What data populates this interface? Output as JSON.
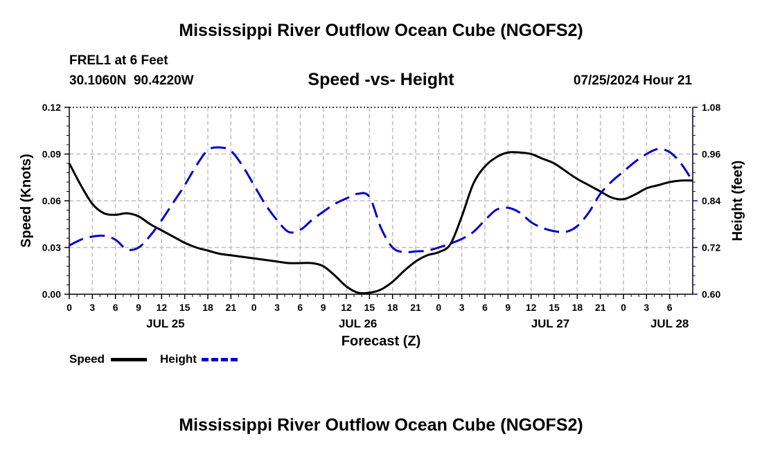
{
  "page": {
    "title_top": "Mississippi River Outflow Ocean Cube (NGOFS2)",
    "title_bottom": "Mississippi River Outflow Ocean Cube (NGOFS2)",
    "station_line": "FREL1 at 6 Feet",
    "coords_line": "30.1060N  90.4220W",
    "datetime_line": "07/25/2024 Hour 21"
  },
  "chart_data": {
    "type": "line",
    "title": "Speed -vs- Height",
    "xlabel": "Forecast (Z)",
    "ylabel": "Speed (Knots)",
    "y2label": "Height (feet)",
    "xlim": [
      0,
      81
    ],
    "ylim": [
      0,
      0.12
    ],
    "y2lim": [
      0.6,
      1.08
    ],
    "yticks": [
      0.0,
      0.03,
      0.06,
      0.09,
      0.12
    ],
    "ytick_labels": [
      "0.00",
      "0.03",
      "0.06",
      "0.09",
      "0.12"
    ],
    "y2ticks": [
      0.6,
      0.72,
      0.84,
      0.96,
      1.08
    ],
    "y2tick_labels": [
      "0.60",
      "0.72",
      "0.84",
      "0.96",
      "1.08"
    ],
    "xtick_labels": [
      "0",
      "3",
      "6",
      "9",
      "12",
      "15",
      "18",
      "21",
      "0",
      "3",
      "6",
      "9",
      "12",
      "15",
      "18",
      "21",
      "0",
      "3",
      "6",
      "9",
      "12",
      "15",
      "18",
      "21",
      "0",
      "3",
      "6"
    ],
    "date_labels": [
      {
        "label": "JUL 25",
        "hour": 12.5
      },
      {
        "label": "JUL 26",
        "hour": 37.5
      },
      {
        "label": "JUL 27",
        "hour": 62.5
      },
      {
        "label": "JUL 28",
        "hour": 78
      }
    ],
    "grid": true,
    "series": [
      {
        "name": "Speed",
        "axis": "left",
        "color": "#000000",
        "style": "solid",
        "x": [
          0,
          1.5,
          3,
          4.5,
          6,
          7.5,
          9,
          10.5,
          12,
          13.5,
          15,
          16.5,
          18,
          19.5,
          21,
          22.5,
          24,
          25.5,
          27,
          28.5,
          30,
          31.5,
          33,
          34.5,
          36,
          37.5,
          39,
          40.5,
          42,
          43.5,
          45,
          46.5,
          48,
          49.5,
          51,
          52.5,
          54,
          55.5,
          57,
          58.5,
          60,
          61.5,
          63,
          64.5,
          66,
          67.5,
          69,
          70.5,
          72,
          73.5,
          75,
          76.5,
          78,
          79.5,
          81
        ],
        "values": [
          0.084,
          0.07,
          0.058,
          0.052,
          0.051,
          0.052,
          0.05,
          0.045,
          0.041,
          0.037,
          0.033,
          0.03,
          0.028,
          0.026,
          0.025,
          0.024,
          0.023,
          0.022,
          0.021,
          0.02,
          0.02,
          0.02,
          0.018,
          0.012,
          0.005,
          0.001,
          0.001,
          0.003,
          0.008,
          0.015,
          0.021,
          0.025,
          0.027,
          0.032,
          0.05,
          0.071,
          0.082,
          0.088,
          0.091,
          0.091,
          0.09,
          0.087,
          0.084,
          0.079,
          0.074,
          0.07,
          0.066,
          0.062,
          0.061,
          0.064,
          0.068,
          0.07,
          0.072,
          0.073,
          0.073
        ]
      },
      {
        "name": "Height",
        "axis": "right",
        "color": "#0000cc",
        "style": "dashed",
        "x": [
          0,
          1.5,
          3,
          4.5,
          6,
          7.5,
          9,
          10.5,
          12,
          13.5,
          15,
          16.5,
          18,
          19.5,
          21,
          22.5,
          24,
          25.5,
          27,
          28.5,
          30,
          31.5,
          33,
          34.5,
          36,
          37.5,
          39,
          40.5,
          42,
          43.5,
          45,
          46.5,
          48,
          49.5,
          51,
          52.5,
          54,
          55.5,
          57,
          58.5,
          60,
          61.5,
          63,
          64.5,
          66,
          67.5,
          69,
          70.5,
          72,
          73.5,
          75,
          76.5,
          78,
          79.5,
          81
        ],
        "values": [
          0.725,
          0.74,
          0.748,
          0.75,
          0.74,
          0.715,
          0.72,
          0.75,
          0.79,
          0.835,
          0.88,
          0.93,
          0.97,
          0.977,
          0.968,
          0.93,
          0.88,
          0.83,
          0.79,
          0.76,
          0.765,
          0.79,
          0.812,
          0.832,
          0.846,
          0.858,
          0.85,
          0.77,
          0.72,
          0.708,
          0.71,
          0.712,
          0.72,
          0.73,
          0.742,
          0.76,
          0.79,
          0.817,
          0.822,
          0.81,
          0.785,
          0.77,
          0.762,
          0.76,
          0.775,
          0.81,
          0.858,
          0.89,
          0.915,
          0.94,
          0.96,
          0.973,
          0.965,
          0.935,
          0.89
        ]
      }
    ],
    "legend": [
      {
        "label": "Speed",
        "color": "#000000",
        "style": "solid"
      },
      {
        "label": "Height",
        "color": "#0000cc",
        "style": "dashed"
      }
    ]
  }
}
